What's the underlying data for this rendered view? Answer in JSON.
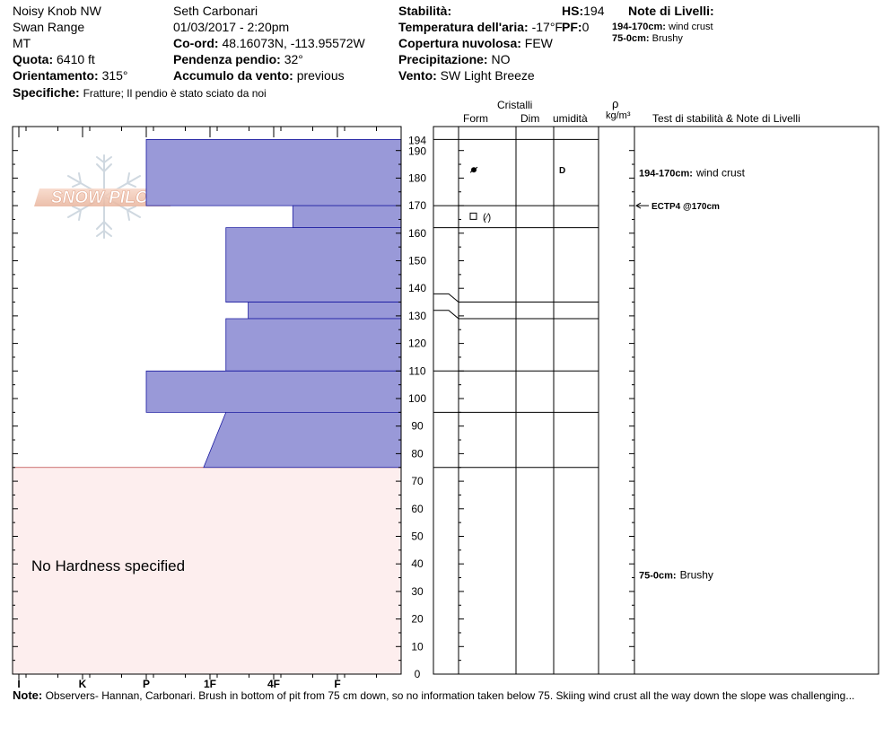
{
  "header": {
    "location": "Noisy Knob NW",
    "range": "Swan Range",
    "state": "MT",
    "elevation_label": "Quota:",
    "elevation": "6410 ft",
    "aspect_label": "Orientamento:",
    "aspect": "315°",
    "specifics_label": "Specifiche:",
    "specifics": "Fratture;  Il pendio è stato sciato da noi",
    "observer": "Seth Carbonari",
    "datetime": "01/03/2017 - 2:20pm",
    "coord_label": "Co-ord:",
    "coord": "48.16073N, -113.95572W",
    "slope_label": "Pendenza pendio:",
    "slope": "32°",
    "wind_load_label": "Accumulo da vento:",
    "wind_load": "previous",
    "stability_label": "Stabilità:",
    "stability": "",
    "air_temp_label": "Temperatura dell'aria:",
    "air_temp": "-17°F",
    "cloud_label": "Copertura nuvolosa:",
    "cloud": "FEW",
    "precip_label": "Precipitazione:",
    "precip": "NO",
    "wind_label": "Vento:",
    "wind": "SW  Light Breeze",
    "hs_label": "HS:",
    "hs": "194",
    "pf_label": "PF:",
    "pf": "0",
    "layer_notes_label": "Note di Livelli:",
    "layer_notes": [
      {
        "range": "194-170cm:",
        "text": "wind crust"
      },
      {
        "range": "75-0cm:",
        "text": "Brushy"
      }
    ]
  },
  "columns": {
    "crystals": "Cristalli",
    "form": "Form",
    "size": "Dim",
    "moisture": "umidità",
    "rho": "ρ",
    "density_unit": "kg/m³",
    "tests": "Test di stabilità & Note di Livelli"
  },
  "logo_text": "SNOW PILOT",
  "no_hardness": "No Hardness specified",
  "note_label": "Note:",
  "note": "Observers- Hannan, Carbonari.  Brush in bottom of pit from 75 cm down, so no information taken below 75.  Skiing wind crust all the way down the slope was challenging...",
  "colors": {
    "hardness_fill": "#9999d8",
    "hardness_stroke": "#1a1aa0",
    "no_hardness_fill": "#fdeeee",
    "line": "#000000"
  },
  "chart_data": {
    "type": "bar",
    "title": "",
    "xlabel": "",
    "ylabel": "",
    "height_range_cm": [
      0,
      194
    ],
    "height_ticks_cm": [
      0,
      10,
      20,
      30,
      40,
      50,
      60,
      70,
      80,
      90,
      100,
      110,
      120,
      130,
      140,
      150,
      160,
      170,
      180,
      190,
      194
    ],
    "hardness_scale": [
      "I",
      "K",
      "P",
      "1F",
      "4F",
      "F"
    ],
    "hardness_units": "F=1, 4F=2, 1F=3, P=4, K=5, I=6",
    "layers": [
      {
        "top": 194,
        "bottom": 170,
        "hardness_top": 4,
        "hardness_bottom": 4
      },
      {
        "top": 170,
        "bottom": 162,
        "hardness_top": 1.7,
        "hardness_bottom": 1.7
      },
      {
        "top": 162,
        "bottom": 135,
        "hardness_top": 2.75,
        "hardness_bottom": 2.75
      },
      {
        "top": 135,
        "bottom": 129,
        "hardness_top": 2.4,
        "hardness_bottom": 2.4
      },
      {
        "top": 129,
        "bottom": 110,
        "hardness_top": 2.75,
        "hardness_bottom": 2.75
      },
      {
        "top": 110,
        "bottom": 95,
        "hardness_top": 4,
        "hardness_bottom": 4
      },
      {
        "top": 95,
        "bottom": 75,
        "hardness_top": 2.75,
        "hardness_bottom": 3.1
      }
    ],
    "no_hardness_range": [
      0,
      75
    ],
    "layer_boundaries_cm": [
      194,
      170,
      162,
      135,
      129,
      110,
      95,
      75
    ],
    "grain_forms": [
      {
        "height": 183,
        "symbol": "rounded-grains"
      },
      {
        "height": 166,
        "symbol": "faceted-to-rounded"
      }
    ],
    "moisture": [
      {
        "height": 183,
        "value": "D"
      }
    ],
    "tests": [
      {
        "height": 170,
        "label": "ECTP4 @170cm"
      }
    ],
    "layer_notes": [
      {
        "height": 182,
        "range": "194-170cm:",
        "text": "wind crust"
      },
      {
        "height": 36,
        "range": "75-0cm:",
        "text": "Brushy"
      }
    ]
  }
}
